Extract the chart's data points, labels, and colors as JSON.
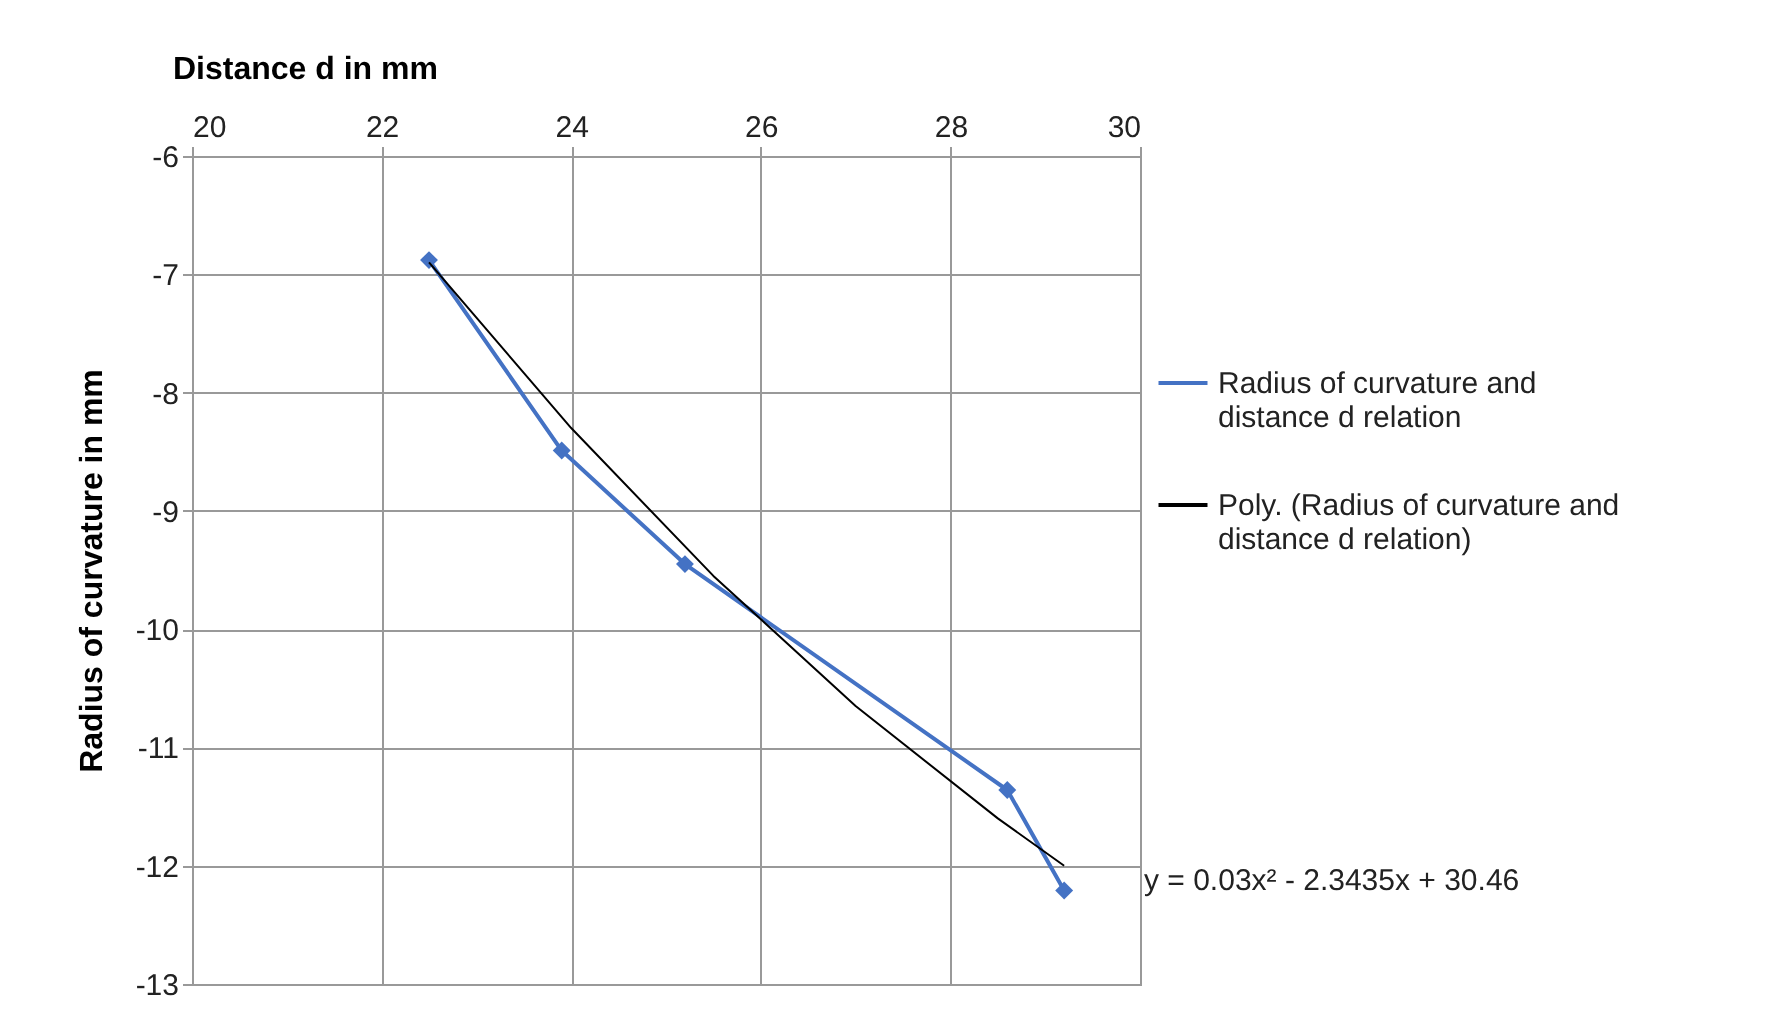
{
  "chart_data": {
    "type": "line",
    "xlabel": "Distance d in mm",
    "ylabel": "Radius of curvature in mm",
    "xlim": [
      20,
      30
    ],
    "xticks": [
      20,
      22,
      24,
      26,
      28,
      30
    ],
    "ylim": [
      -13,
      -6
    ],
    "yticks": [
      -6,
      -7,
      -8,
      -9,
      -10,
      -11,
      -12,
      -13
    ],
    "grid": true,
    "legend": "right",
    "series": [
      {
        "name": "Radius of curvature and distance d relation",
        "color": "#4472c4",
        "marker": "diamond",
        "x": [
          22.5,
          23.9,
          25.2,
          28.6,
          29.2
        ],
        "values": [
          -6.88,
          -8.49,
          -9.45,
          -11.36,
          -12.21
        ]
      },
      {
        "name": "Poly. (Radius of curvature and distance d relation)",
        "color": "#000000",
        "marker": "none",
        "x": [
          22.5,
          24,
          25.5,
          27,
          28.5,
          29.2
        ],
        "values": [
          -6.9,
          -8.3,
          -9.55,
          -10.65,
          -11.6,
          -12.0
        ]
      }
    ],
    "annotations": [
      "y = 0.03x² - 2.3435x + 30.46"
    ]
  }
}
